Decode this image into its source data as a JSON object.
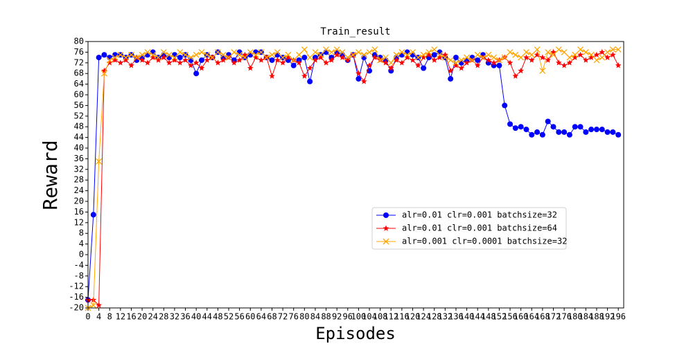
{
  "chart_data": {
    "type": "line",
    "title": "Train_result",
    "xlabel": "Episodes",
    "ylabel": "Reward",
    "x": [
      0,
      2,
      4,
      6,
      8,
      10,
      12,
      14,
      16,
      18,
      20,
      22,
      24,
      26,
      28,
      30,
      32,
      34,
      36,
      38,
      40,
      42,
      44,
      46,
      48,
      50,
      52,
      54,
      56,
      58,
      60,
      62,
      64,
      66,
      68,
      70,
      72,
      74,
      76,
      78,
      80,
      82,
      84,
      86,
      88,
      90,
      92,
      94,
      96,
      98,
      100,
      102,
      104,
      106,
      108,
      110,
      112,
      114,
      116,
      118,
      120,
      122,
      124,
      126,
      128,
      130,
      132,
      134,
      136,
      138,
      140,
      142,
      144,
      146,
      148,
      150,
      152,
      154,
      156,
      158,
      160,
      162,
      164,
      166,
      168,
      170,
      172,
      174,
      176,
      178,
      180,
      182,
      184,
      186,
      188,
      190,
      192,
      194,
      196
    ],
    "series": [
      {
        "name": "alr=0.01 clr=0.001 batchsize=32",
        "color": "#0000ff",
        "marker": "circle",
        "values": [
          -17,
          15,
          74,
          75,
          74,
          75,
          75,
          74,
          75,
          73,
          74,
          75,
          76,
          74,
          75,
          74,
          75,
          74,
          75,
          73,
          68,
          73,
          75,
          74,
          76,
          74,
          75,
          73,
          76,
          74,
          75,
          76,
          76,
          74,
          73,
          75,
          74,
          73,
          71,
          73,
          74,
          65,
          74,
          75,
          76,
          74,
          76,
          75,
          73,
          75,
          66,
          74,
          69,
          75,
          74,
          73,
          69,
          74,
          75,
          76,
          75,
          74,
          70,
          74,
          75,
          76,
          74,
          66,
          74,
          72,
          73,
          74,
          73,
          75,
          72,
          71,
          71,
          56,
          49,
          47.5,
          48,
          47,
          45,
          46,
          45,
          50,
          48,
          46,
          46,
          45,
          48,
          48,
          46,
          47,
          47,
          47,
          46,
          46,
          45
        ]
      },
      {
        "name": "alr=0.01 clr=0.001 batchsize=64",
        "color": "#ff0000",
        "marker": "star",
        "values": [
          -17,
          -17,
          -19,
          69,
          72,
          73,
          72,
          73,
          71,
          74,
          73,
          72,
          74,
          73,
          74,
          72,
          73,
          72,
          73,
          71,
          72,
          70,
          73,
          74,
          72,
          73,
          74,
          72,
          73,
          75,
          70,
          74,
          73,
          74,
          67,
          73,
          72,
          74,
          73,
          72,
          67,
          70,
          73,
          74,
          72,
          73,
          75,
          74,
          73,
          75,
          68,
          65,
          71,
          74,
          73,
          72,
          70,
          73,
          72,
          74,
          73,
          71,
          74,
          75,
          73,
          74,
          75,
          69,
          71,
          70,
          72,
          73,
          71,
          74,
          73,
          72,
          73,
          74,
          72,
          67,
          69,
          74,
          73,
          75,
          74,
          73,
          76,
          72,
          71,
          72,
          74,
          75,
          73,
          74,
          75,
          76,
          74,
          75,
          71
        ]
      },
      {
        "name": "alr=0.001 clr=0.0001 batchsize=32",
        "color": "#ffa500",
        "marker": "x",
        "values": [
          -20,
          -19,
          35,
          68,
          73,
          74,
          75,
          74,
          75,
          74,
          75,
          76,
          75,
          74,
          76,
          75,
          74,
          76,
          75,
          74,
          75,
          76,
          75,
          74,
          76,
          75,
          74,
          76,
          75,
          74,
          76,
          75,
          76,
          74,
          75,
          76,
          74,
          75,
          73,
          75,
          77,
          74,
          76,
          75,
          77,
          76,
          77,
          76,
          74,
          75,
          76,
          75,
          76,
          77,
          73,
          74,
          72,
          75,
          76,
          75,
          76,
          74,
          75,
          76,
          77,
          75,
          74,
          73,
          72,
          73,
          74,
          73,
          75,
          74,
          75,
          74,
          73,
          74,
          76,
          75,
          74,
          76,
          75,
          77,
          69,
          76,
          75,
          77,
          76,
          74,
          75,
          77,
          76,
          75,
          73,
          74,
          76,
          77,
          77
        ]
      }
    ],
    "xlim": [
      0,
      198
    ],
    "ylim": [
      -20,
      80
    ],
    "xticks": [
      0,
      4,
      8,
      12,
      16,
      20,
      24,
      28,
      32,
      36,
      40,
      44,
      48,
      52,
      56,
      60,
      64,
      68,
      72,
      76,
      80,
      84,
      88,
      92,
      96,
      100,
      104,
      108,
      112,
      116,
      120,
      124,
      128,
      132,
      136,
      140,
      144,
      148,
      152,
      156,
      160,
      164,
      168,
      172,
      176,
      180,
      184,
      188,
      192,
      196
    ],
    "yticks": [
      -20,
      -16,
      -12,
      -8,
      -4,
      0,
      4,
      8,
      12,
      16,
      20,
      24,
      28,
      32,
      36,
      40,
      44,
      48,
      52,
      56,
      60,
      64,
      68,
      72,
      76,
      80
    ],
    "legend": "lower right"
  }
}
